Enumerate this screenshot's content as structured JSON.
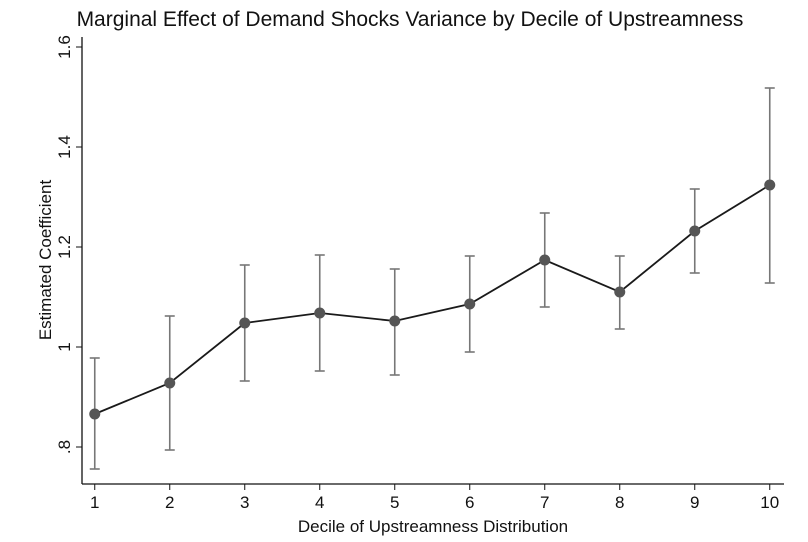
{
  "chart_data": {
    "type": "line",
    "title": "Marginal Effect of Demand Shocks Variance by Decile of Upstreamness",
    "x_label": "Decile of Upstreamness Distribution",
    "y_label": "Estimated Coefficient",
    "x": [
      1,
      2,
      3,
      4,
      5,
      6,
      7,
      8,
      9,
      10
    ],
    "series": [
      {
        "color": "#555555",
        "values": [
          0.866,
          0.928,
          1.048,
          1.068,
          1.052,
          1.086,
          1.174,
          1.11,
          1.232,
          1.324
        ],
        "ci_lower": [
          0.756,
          0.794,
          0.932,
          0.952,
          0.944,
          0.99,
          1.08,
          1.036,
          1.148,
          1.128
        ],
        "ci_upper": [
          0.978,
          1.062,
          1.164,
          1.184,
          1.156,
          1.182,
          1.268,
          1.182,
          1.316,
          1.518
        ]
      }
    ],
    "line_color": "#1a1a1a",
    "error_bar_color": "#777777",
    "xlim": [
      0.83,
      10.19
    ],
    "xticks": [
      1,
      2,
      3,
      4,
      5,
      6,
      7,
      8,
      9,
      10
    ],
    "ylim": [
      0.726,
      1.62
    ],
    "yticks": [
      {
        "value": 0.8,
        "label": ".8"
      },
      1,
      1.2,
      1.4,
      1.6
    ]
  }
}
